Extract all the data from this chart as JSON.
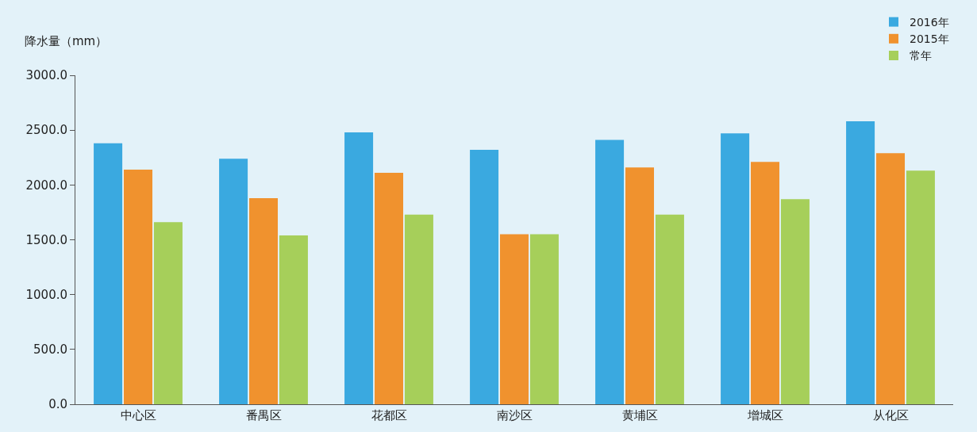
{
  "chart_data": {
    "type": "bar",
    "ylabel": "降水量（mm）",
    "categories": [
      "中心区",
      "番禺区",
      "花都区",
      "南沙区",
      "黄埔区",
      "增城区",
      "从化区"
    ],
    "series": [
      {
        "name": "2016年",
        "color": "#3aa9e0",
        "values": [
          2380,
          2240,
          2480,
          2320,
          2410,
          2470,
          2580
        ]
      },
      {
        "name": "2015年",
        "color": "#f0922e",
        "values": [
          2140,
          1880,
          2110,
          1550,
          2160,
          2210,
          2290
        ]
      },
      {
        "name": "常年",
        "color": "#a6cf5a",
        "values": [
          1660,
          1540,
          1730,
          1550,
          1730,
          1870,
          2130
        ]
      }
    ],
    "ylim": [
      0,
      3000
    ],
    "yticks": [
      {
        "value": 0,
        "label": "0.0"
      },
      {
        "value": 500,
        "label": "500.0"
      },
      {
        "value": 1000,
        "label": "1000.0"
      },
      {
        "value": 1500,
        "label": "1500.0"
      },
      {
        "value": 2000,
        "label": "2000.0"
      },
      {
        "value": 2500,
        "label": "2500.0"
      },
      {
        "value": 3000,
        "label": "3000.0"
      }
    ],
    "grid": false,
    "legend": "top right"
  }
}
